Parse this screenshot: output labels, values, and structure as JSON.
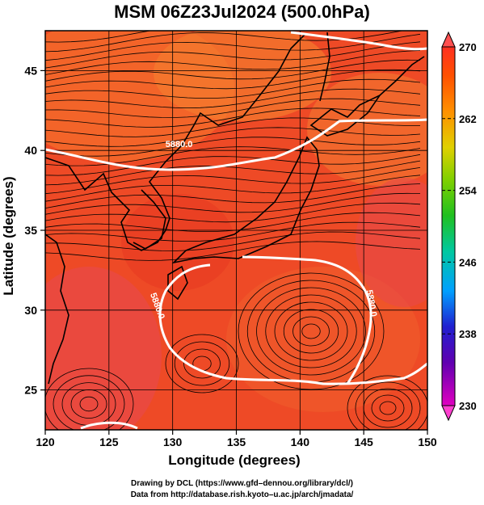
{
  "title": "MSM 06Z23Jul2024 (500.0hPa)",
  "x_axis": {
    "label": "Longitude (degrees)",
    "range": [
      120,
      150
    ],
    "ticks": [
      120,
      125,
      130,
      135,
      140,
      145,
      150
    ],
    "tick_labels": [
      "120",
      "125",
      "130",
      "135",
      "140",
      "145",
      "150"
    ]
  },
  "y_axis": {
    "label": "Latitude  (degrees)",
    "range": [
      22.5,
      47.5
    ],
    "ticks": [
      25,
      30,
      35,
      40,
      45
    ],
    "tick_labels": [
      "25",
      "30",
      "35",
      "40",
      "45"
    ]
  },
  "colorbar": {
    "min": 230,
    "max": 270,
    "tick_labels": [
      "270",
      "262",
      "254",
      "246",
      "238",
      "230"
    ]
  },
  "contours": [
    {
      "label": "5880.0",
      "lon": 130.5,
      "lat": 40.2
    },
    {
      "label": "5880.0",
      "lon": 128.6,
      "lat": 30.2
    },
    {
      "label": "5880.0",
      "lon": 145.4,
      "lat": 30.4
    }
  ],
  "credits": {
    "line1": "Drawing by DCL (https://www.gfd–dennou.org/library/dcl/)",
    "line2": "Data from http://database.rish.kyoto–u.ac.jp/arch/jmadata/"
  }
}
